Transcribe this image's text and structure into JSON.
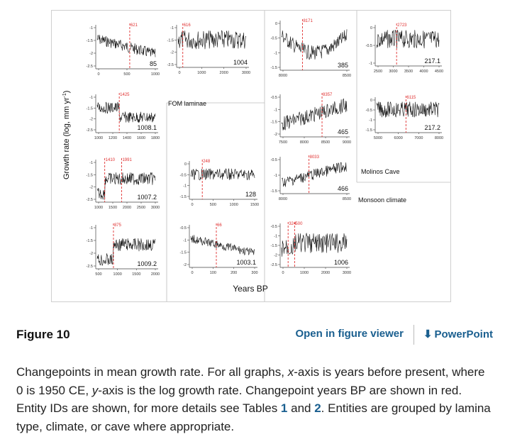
{
  "figure": {
    "y_axis_label": "Growth rate (log, mm yr",
    "y_axis_sup": "-1",
    "y_axis_close": ")",
    "x_axis_label": "Years BP",
    "group_labels": {
      "fom": "FOM laminae",
      "molinos": "Molinos Cave",
      "monsoon": "Monsoon climate"
    },
    "panels": [
      {
        "id": "85",
        "changepoints": [
          "621"
        ],
        "yticks": [
          "-1",
          "-1.5",
          "-2",
          "-2.5"
        ],
        "xticks": [
          "0",
          "500",
          "1000"
        ]
      },
      {
        "id": "1004",
        "changepoints": [
          "616"
        ],
        "yticks": [
          "-1",
          "-1.5",
          "-2",
          "-2.5"
        ],
        "xticks": [
          "0",
          "1000",
          "2000",
          "3000"
        ]
      },
      {
        "id": "385",
        "changepoints": [
          "8171"
        ],
        "yticks": [
          "0",
          "-0.5",
          "-1",
          "-1.5"
        ],
        "xticks": [
          "8000",
          "8500"
        ]
      },
      {
        "id": "217.1",
        "changepoints": [
          "2723"
        ],
        "yticks": [
          "0",
          "-0.5",
          "-1"
        ],
        "xticks": [
          "2500",
          "3000",
          "3500",
          "4000",
          "4500"
        ]
      },
      {
        "id": "1008.1",
        "changepoints": [
          "1425"
        ],
        "yticks": [
          "-1",
          "-1.5",
          "-2",
          "-2.5"
        ],
        "xticks": [
          "1000",
          "1200",
          "1400",
          "1600",
          "1800"
        ]
      },
      {
        "id": "465",
        "changepoints": [
          "8357"
        ],
        "yticks": [
          "-0.5",
          "-1",
          "-1.5",
          "-2"
        ],
        "xticks": [
          "7500",
          "8000",
          "8500",
          "9000"
        ]
      },
      {
        "id": "217.2",
        "changepoints": [
          "6115"
        ],
        "yticks": [
          "0",
          "-0.5",
          "-1",
          "-1.5"
        ],
        "xticks": [
          "5000",
          "6000",
          "7000",
          "8000"
        ]
      },
      {
        "id": "1007.2",
        "changepoints": [
          "1410",
          "1991"
        ],
        "yticks": [
          "-1",
          "-1.5",
          "-2",
          "-2.5"
        ],
        "xticks": [
          "1000",
          "1500",
          "2000",
          "2500",
          "3000"
        ]
      },
      {
        "id": "128",
        "changepoints": [
          "248"
        ],
        "yticks": [
          "0",
          "-0.5",
          "-1",
          "-1.5"
        ],
        "xticks": [
          "0",
          "500",
          "1000",
          "1500"
        ]
      },
      {
        "id": "466",
        "changepoints": [
          "8033"
        ],
        "yticks": [
          "-0.5",
          "-1",
          "-1.5"
        ],
        "xticks": [
          "8000",
          "8500"
        ]
      },
      {
        "id": "1009.2",
        "changepoints": [
          "875"
        ],
        "yticks": [
          "-1",
          "-1.5",
          "-2",
          "-2.5"
        ],
        "xticks": [
          "500",
          "1000",
          "1500",
          "2000"
        ]
      },
      {
        "id": "1003.1",
        "changepoints": [
          "66"
        ],
        "yticks": [
          "-0.5",
          "-1",
          "-1.5",
          "-2"
        ],
        "xticks": [
          "0",
          "100",
          "200",
          "300"
        ]
      },
      {
        "id": "1006",
        "changepoints": [
          "324",
          "500"
        ],
        "yticks": [
          "-0.5",
          "-1",
          "-1.5",
          "-2",
          "-2.5"
        ],
        "xticks": [
          "0",
          "1000",
          "2000",
          "3000"
        ]
      }
    ]
  },
  "caption_bar": {
    "figure_label": "Figure 10",
    "viewer_link": "Open in figure viewer",
    "ppt_icon": "download-arrow-icon",
    "ppt_link": "PowerPoint"
  },
  "caption": {
    "t1": "Changepoints in mean growth rate. For all graphs, ",
    "x_italic": "x",
    "t2": "-axis is years before present, where 0 is 1950 CE, ",
    "y_italic": "y",
    "t3": "-axis is the log growth rate. Changepoint years BP are shown in red. Entity IDs are shown, for more details see Tables ",
    "table1": "1",
    "t4": " and ",
    "table2": "2",
    "t5": ". Entities are grouped by lamina type, climate, or cave where appropriate."
  },
  "colors": {
    "link": "#1a5f8f",
    "changepoint": "#e03030",
    "series": "#111111"
  }
}
